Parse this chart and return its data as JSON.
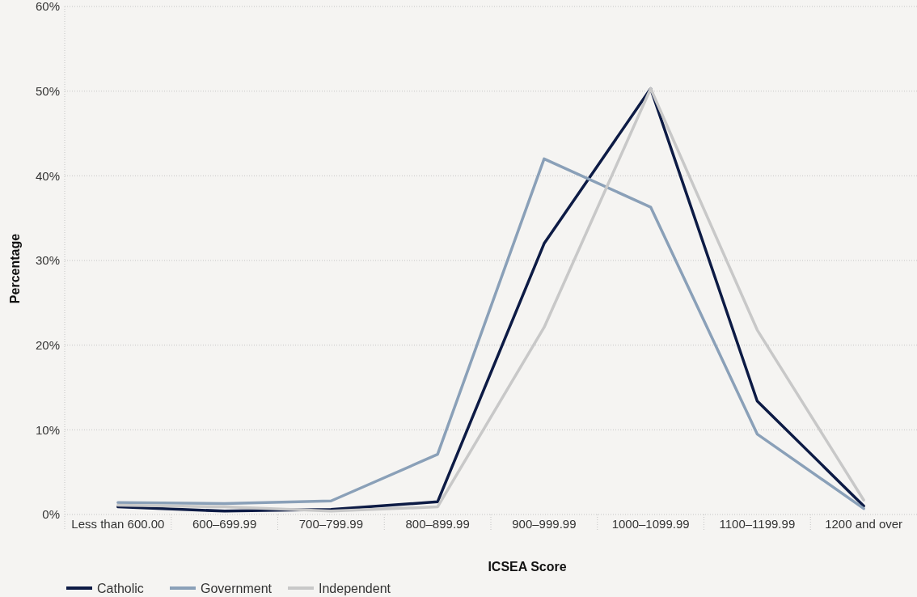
{
  "chart_data": {
    "type": "line",
    "xlabel": "ICSEA Score",
    "ylabel": "Percentage",
    "categories": [
      "Less than 600.00",
      "600–699.99",
      "700–799.99",
      "800–899.99",
      "900–999.99",
      "1000–1099.99",
      "1100–1199.99",
      "1200 and over"
    ],
    "series": [
      {
        "name": "Catholic",
        "color": "#0d1b45",
        "values": [
          0.9,
          0.4,
          0.6,
          1.5,
          32.0,
          50.3,
          13.4,
          1.0
        ]
      },
      {
        "name": "Government",
        "color": "#8aa0b8",
        "values": [
          1.4,
          1.3,
          1.6,
          7.1,
          42.0,
          36.3,
          9.5,
          0.7
        ]
      },
      {
        "name": "Independent",
        "color": "#c8c8c8",
        "values": [
          1.1,
          0.9,
          0.4,
          0.9,
          22.1,
          50.3,
          21.8,
          1.7
        ]
      }
    ],
    "ylim": [
      0,
      60
    ],
    "yticks": [
      {
        "value": 0,
        "label": "0%"
      },
      {
        "value": 10,
        "label": "10%"
      },
      {
        "value": 20,
        "label": "20%"
      },
      {
        "value": 30,
        "label": "30%"
      },
      {
        "value": 40,
        "label": "40%"
      },
      {
        "value": 50,
        "label": "50%"
      },
      {
        "value": 60,
        "label": "60%"
      }
    ],
    "grid": "y",
    "legend": "bottom left",
    "marker": "none",
    "line_style": "solid"
  }
}
